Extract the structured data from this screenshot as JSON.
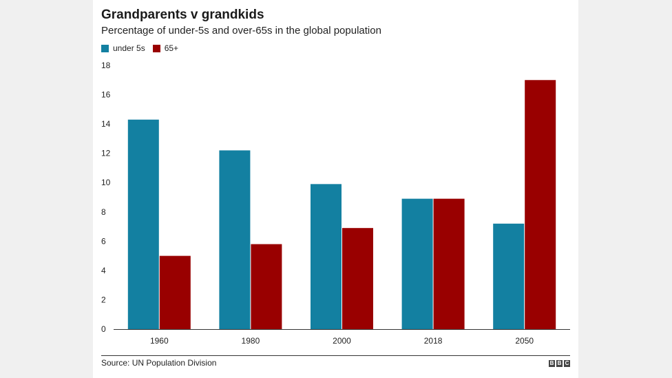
{
  "header": {
    "title": "Grandparents v grandkids",
    "subtitle": "Percentage of under-5s and over-65s in the global population"
  },
  "legend": [
    {
      "label": "under 5s",
      "color": "#1380a1"
    },
    {
      "label": "65+",
      "color": "#990000"
    }
  ],
  "chart_data": {
    "type": "bar",
    "title": "Grandparents v grandkids",
    "subtitle": "Percentage of under-5s and over-65s in the global population",
    "categories": [
      "1960",
      "1980",
      "2000",
      "2018",
      "2050"
    ],
    "series": [
      {
        "name": "under 5s",
        "color": "#1380a1",
        "values": [
          14.3,
          12.2,
          9.9,
          8.9,
          7.2
        ]
      },
      {
        "name": "65+",
        "color": "#990000",
        "values": [
          5.0,
          5.8,
          6.9,
          8.9,
          17.0
        ]
      }
    ],
    "ylim": [
      0,
      18
    ],
    "yticks": [
      0,
      2,
      4,
      6,
      8,
      10,
      12,
      14,
      16,
      18
    ],
    "grid": false,
    "legend_position": "top-left"
  },
  "footer": {
    "source": "Source: UN Population Division",
    "logo": [
      "B",
      "B",
      "C"
    ]
  }
}
